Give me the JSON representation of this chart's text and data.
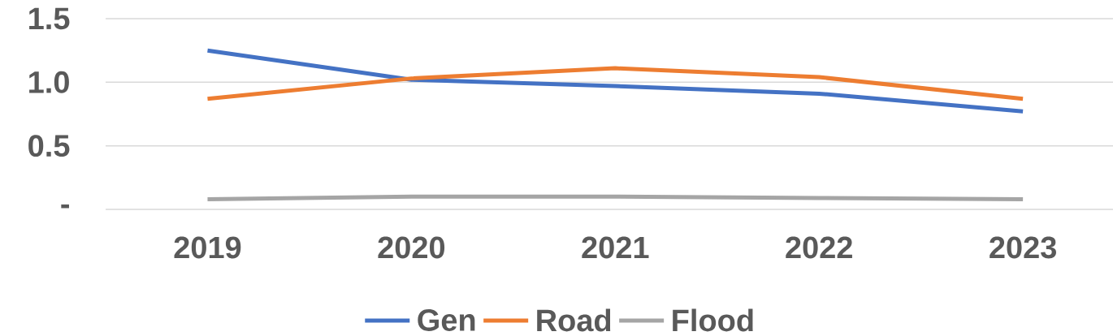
{
  "chart_data": {
    "type": "line",
    "categories": [
      "2019",
      "2020",
      "2021",
      "2022",
      "2023"
    ],
    "series": [
      {
        "name": "Gen",
        "color": "#4472c4",
        "values": [
          1.25,
          1.02,
          0.97,
          0.91,
          0.77
        ]
      },
      {
        "name": "Road",
        "color": "#ed7d31",
        "values": [
          0.87,
          1.03,
          1.11,
          1.04,
          0.87
        ]
      },
      {
        "name": "Flood",
        "color": "#a5a5a5",
        "values": [
          0.08,
          0.1,
          0.1,
          0.09,
          0.08
        ]
      }
    ],
    "ylim": [
      0,
      1.5
    ],
    "yticks": [
      {
        "value": 0,
        "label": "-"
      },
      0.5,
      {
        "value": 1,
        "label": "1.0"
      },
      1.5
    ],
    "grid": "y",
    "legend": "bottom",
    "marker": "none",
    "line_style": "solid"
  }
}
